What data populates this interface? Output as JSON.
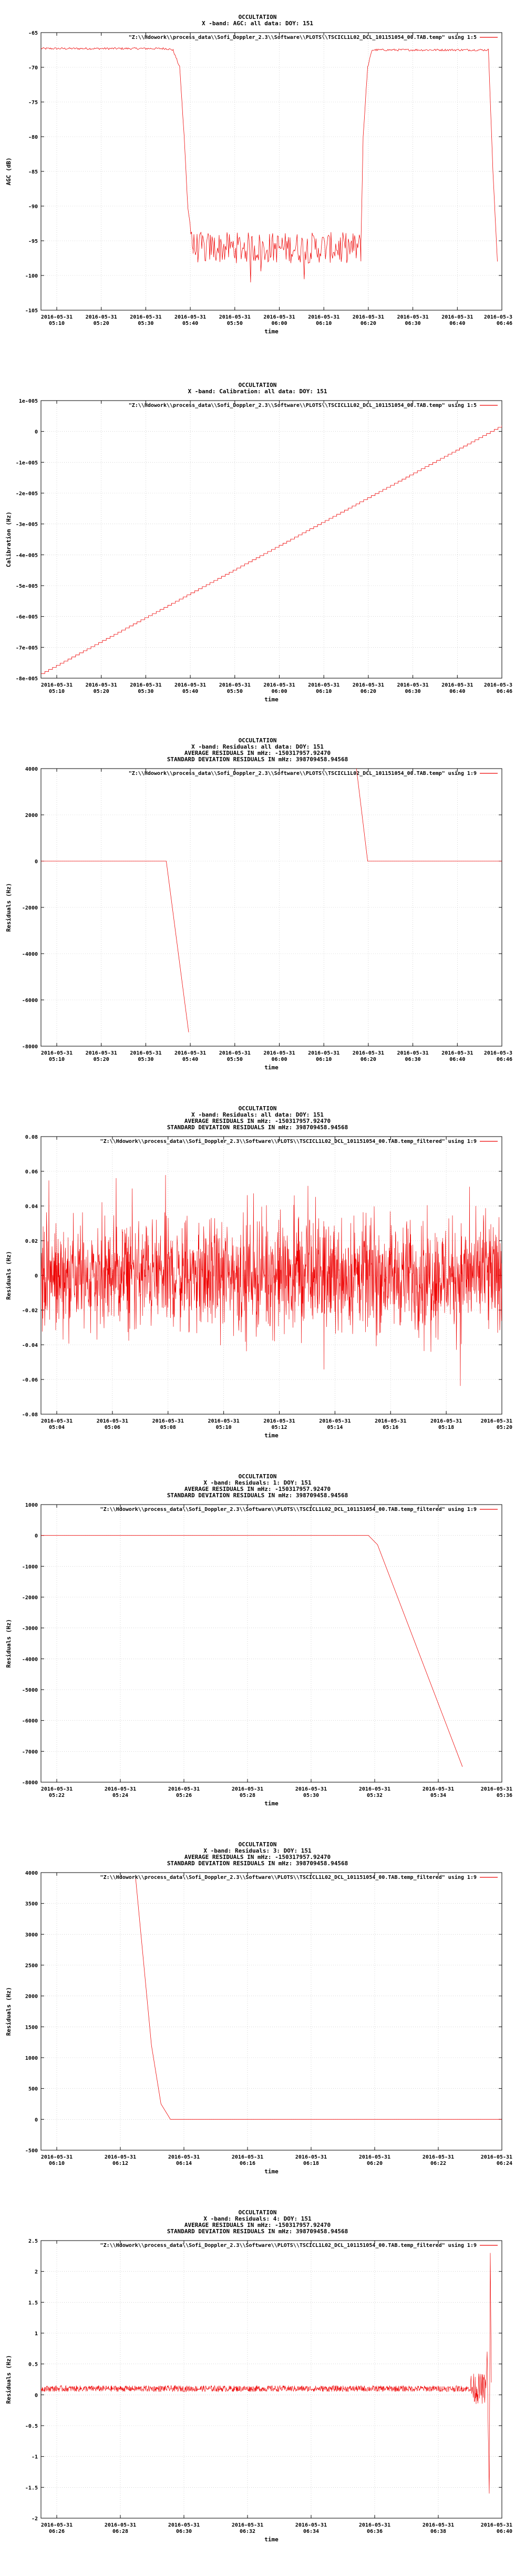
{
  "chart_data": [
    {
      "type": "line",
      "title_lines": [
        "OCCULTATION",
        "X -band: AGC: all data: DOY: 151"
      ],
      "legend": "\"Z:\\\\Hdowork\\\\process_data\\\\Sofi_Doppler_2.3\\\\Software\\\\PLOTS\\\\TSCICL1L02_DCL_101151054_00.TAB.temp\" using 1:5",
      "xlabel": "time",
      "ylabel": "AGC (dB)",
      "xticks": [
        "2016-05-31\n05:10",
        "2016-05-31\n05:20",
        "2016-05-31\n05:30",
        "2016-05-31\n05:40",
        "2016-05-31\n05:50",
        "2016-05-31\n06:00",
        "2016-05-31\n06:10",
        "2016-05-31\n06:20",
        "2016-05-31\n06:30",
        "2016-05-31\n06:40",
        "2016-05-3\n06:46"
      ],
      "yticks": [
        -65,
        -70,
        -75,
        -80,
        -85,
        -90,
        -95,
        -100,
        -105
      ],
      "ylim": [
        -105,
        -65
      ],
      "xlim": [
        0,
        10.3
      ],
      "series_shape": "agc",
      "points": [
        [
          0,
          -67.3
        ],
        [
          2.8,
          -67.3
        ],
        [
          2.95,
          -67.5
        ],
        [
          3.1,
          -70
        ],
        [
          3.2,
          -80
        ],
        [
          3.28,
          -90
        ],
        [
          3.4,
          -96
        ],
        [
          7.15,
          -96
        ],
        [
          7.2,
          -80
        ],
        [
          7.3,
          -70
        ],
        [
          7.4,
          -67.5
        ],
        [
          10.0,
          -67.5
        ],
        [
          10.1,
          -85
        ],
        [
          10.2,
          -98
        ]
      ]
    },
    {
      "type": "line",
      "title_lines": [
        "OCCULTATION",
        "X -band: Calibration: all data: DOY: 151"
      ],
      "legend": "\"Z:\\\\Hdowork\\\\process_data\\\\Sofi_Doppler_2.3\\\\Software\\\\PLOTS\\\\TSCICL1L02_DCL_101151054_00.TAB.temp\" using 1:5",
      "xlabel": "time",
      "ylabel": "Calibration (Hz)",
      "xticks": [
        "2016-05-31\n05:10",
        "2016-05-31\n05:20",
        "2016-05-31\n05:30",
        "2016-05-31\n05:40",
        "2016-05-31\n05:50",
        "2016-05-31\n06:00",
        "2016-05-31\n06:10",
        "2016-05-31\n06:20",
        "2016-05-31\n06:30",
        "2016-05-31\n06:40",
        "2016-05-3\n06:46"
      ],
      "yticks": [
        "1e-005",
        "0",
        "-1e-005",
        "-2e-005",
        "-3e-005",
        "-4e-005",
        "-5e-005",
        "-6e-005",
        "-7e-005",
        "-8e-005"
      ],
      "ylim": [
        -8e-05,
        1e-05
      ],
      "xlim": [
        0,
        10.3
      ],
      "series_shape": "staircase",
      "points": [
        [
          0,
          -7.85e-05
        ],
        [
          10.3,
          2e-06
        ]
      ]
    },
    {
      "type": "line",
      "title_lines": [
        "OCCULTATION",
        "X -band: Residuals: all data: DOY: 151",
        "AVERAGE RESIDUALS IN mHz: -150317957.92470",
        "STANDARD DEVIATION RESIDUALS IN mHz: 398709458.94568"
      ],
      "legend": "\"Z:\\\\Hdowork\\\\process_data\\\\Sofi_Doppler_2.3\\\\Software\\\\PLOTS\\\\TSCICL1L02_DCL_101151054_00.TAB.temp\" using 1:9",
      "xlabel": "time",
      "ylabel": "Residuals (Hz)",
      "xticks": [
        "2016-05-31\n05:10",
        "2016-05-31\n05:20",
        "2016-05-31\n05:30",
        "2016-05-31\n05:40",
        "2016-05-31\n05:50",
        "2016-05-31\n06:00",
        "2016-05-31\n06:10",
        "2016-05-31\n06:20",
        "2016-05-31\n06:30",
        "2016-05-31\n06:40",
        "2016-05-3\n06:46"
      ],
      "yticks": [
        4000,
        2000,
        0,
        -2000,
        -4000,
        -6000,
        -8000
      ],
      "ylim": [
        -8000,
        4000
      ],
      "xlim": [
        0,
        10.3
      ],
      "series_shape": "line",
      "segments": [
        [
          [
            0,
            0
          ],
          [
            2.8,
            0
          ],
          [
            3.3,
            -7400
          ]
        ],
        [
          [
            7.05,
            4000
          ],
          [
            7.3,
            0
          ],
          [
            10.3,
            0
          ]
        ]
      ]
    },
    {
      "type": "line",
      "title_lines": [
        "OCCULTATION",
        "X -band: Residuals: all data: DOY: 151",
        "AVERAGE RESIDUALS IN mHz: -150317957.92470",
        "STANDARD DEVIATION RESIDUALS IN mHz: 398709458.94568"
      ],
      "legend": "\"Z:\\\\Hdowork\\\\process_data\\\\Sofi_Doppler_2.3\\\\Software\\\\PLOTS\\\\TSCICL1L02_DCL_101151054_00.TAB.temp_filtered\" using 1:9",
      "xlabel": "time",
      "ylabel": "Residuals (Hz)",
      "xticks": [
        "2016-05-31\n05:04",
        "2016-05-31\n05:06",
        "2016-05-31\n05:08",
        "2016-05-31\n05:10",
        "2016-05-31\n05:12",
        "2016-05-31\n05:14",
        "2016-05-31\n05:16",
        "2016-05-31\n05:18",
        "2016-05-31\n05:20"
      ],
      "yticks": [
        "0.08",
        "0.06",
        "0.04",
        "0.02",
        "0",
        "-0.02",
        "-0.04",
        "-0.06",
        "-0.08"
      ],
      "ylim": [
        -0.08,
        0.08
      ],
      "xlim": [
        0,
        8.6
      ],
      "series_shape": "noise",
      "noise_center": 0.0,
      "noise_amplitude": 0.06
    },
    {
      "type": "line",
      "title_lines": [
        "OCCULTATION",
        "X -band: Residuals: 1: DOY: 151",
        "AVERAGE RESIDUALS IN mHz: -150317957.92470",
        "STANDARD DEVIATION RESIDUALS IN mHz: 398709458.94568"
      ],
      "legend": "\"Z:\\\\Hdowork\\\\process_data\\\\Sofi_Doppler_2.3\\\\Software\\\\PLOTS\\\\TSCICL1L02_DCL_101151054_00.TAB.temp_filtered\" using 1:9",
      "xlabel": "time",
      "ylabel": "Residuals (Hz)",
      "xticks": [
        "2016-05-31\n05:22",
        "2016-05-31\n05:24",
        "2016-05-31\n05:26",
        "2016-05-31\n05:28",
        "2016-05-31\n05:30",
        "2016-05-31\n05:32",
        "2016-05-31\n05:34",
        "2016-05-31\n05:36"
      ],
      "yticks": [
        1000,
        0,
        -1000,
        -2000,
        -3000,
        -4000,
        -5000,
        -6000,
        -7000,
        -8000
      ],
      "ylim": [
        -8000,
        1000
      ],
      "xlim": [
        0,
        7.6
      ],
      "series_shape": "line",
      "segments": [
        [
          [
            0,
            0
          ],
          [
            5.4,
            0
          ],
          [
            5.55,
            -300
          ],
          [
            6.95,
            -7500
          ]
        ]
      ]
    },
    {
      "type": "line",
      "title_lines": [
        "OCCULTATION",
        "X -band: Residuals: 3: DOY: 151",
        "AVERAGE RESIDUALS IN mHz: -150317957.92470",
        "STANDARD DEVIATION RESIDUALS IN mHz: 398709458.94568"
      ],
      "legend": "\"Z:\\\\Hdowork\\\\process_data\\\\Sofi_Doppler_2.3\\\\Software\\\\PLOTS\\\\TSCICL1L02_DCL_101151054_00.TAB.temp_filtered\" using 1:9",
      "xlabel": "time",
      "ylabel": "Residuals (Hz)",
      "xticks": [
        "2016-05-31\n06:10",
        "2016-05-31\n06:12",
        "2016-05-31\n06:14",
        "2016-05-31\n06:16",
        "2016-05-31\n06:18",
        "2016-05-31\n06:20",
        "2016-05-31\n06:22",
        "2016-05-31\n06:24"
      ],
      "yticks": [
        4000,
        3500,
        3000,
        2500,
        2000,
        1500,
        1000,
        500,
        0,
        -500
      ],
      "ylim": [
        -500,
        4000
      ],
      "xlim": [
        0,
        7.3
      ],
      "series_shape": "line",
      "segments": [
        [
          [
            1.5,
            3900
          ],
          [
            1.75,
            1200
          ],
          [
            1.9,
            250
          ],
          [
            2.05,
            0
          ],
          [
            7.3,
            0
          ]
        ]
      ]
    },
    {
      "type": "line",
      "title_lines": [
        "OCCULTATION",
        "X -band: Residuals: 4: DOY: 151",
        "AVERAGE RESIDUALS IN mHz: -150317957.92470",
        "STANDARD DEVIATION RESIDUALS IN mHz: 398709458.94568"
      ],
      "legend": "\"Z:\\\\Hdowork\\\\process_data\\\\Sofi_Doppler_2.3\\\\Software\\\\PLOTS\\\\TSCICL1L02_DCL_101151054_00.TAB.temp_filtered\" using 1:9",
      "xlabel": "time",
      "ylabel": "Residuals (Hz)",
      "xticks": [
        "2016-05-31\n06:26",
        "2016-05-31\n06:28",
        "2016-05-31\n06:30",
        "2016-05-31\n06:32",
        "2016-05-31\n06:34",
        "2016-05-31\n06:36",
        "2016-05-31\n06:38",
        "2016-05-31\n06:40"
      ],
      "yticks": [
        "2.5",
        "2",
        "1.5",
        "1",
        "0.5",
        "0",
        "-0.5",
        "-1",
        "-1.5",
        "-2"
      ],
      "ylim": [
        -2,
        2.5
      ],
      "xlim": [
        0,
        7.6
      ],
      "series_shape": "noise_band",
      "noise_center": 0.1,
      "noise_amplitude": 0.05
    }
  ]
}
